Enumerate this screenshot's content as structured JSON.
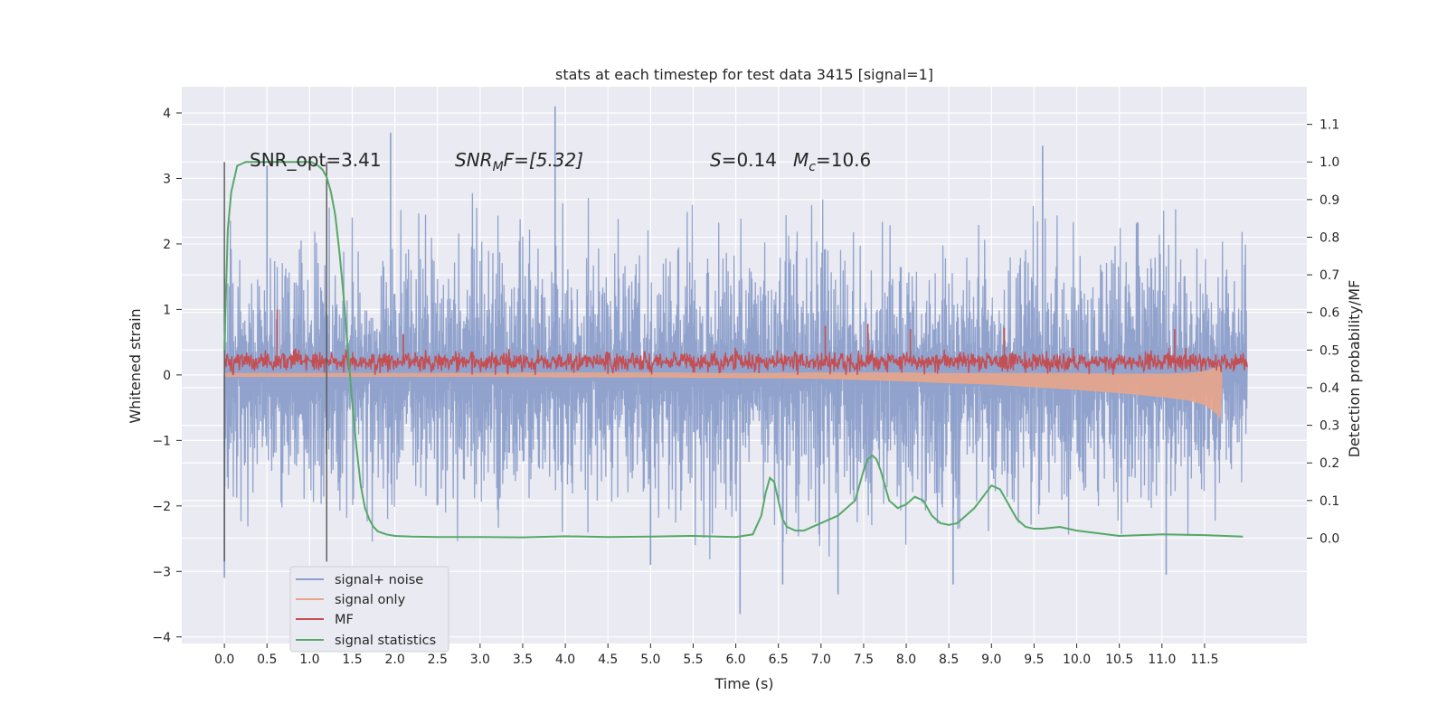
{
  "chart_data": {
    "type": "line",
    "title": "stats at each timestep for test data 3415 [signal=1]",
    "xlabel": "Time (s)",
    "ylabel": "Whitened strain",
    "y2label": "Detection probability/MF",
    "xlim": [
      -0.5,
      12.7
    ],
    "ylim": [
      -4.1,
      4.4
    ],
    "y2lim": [
      -0.28,
      1.2
    ],
    "x_ticks": [
      "0.0",
      "0.5",
      "1.0",
      "1.5",
      "2.0",
      "2.5",
      "3.0",
      "3.5",
      "4.0",
      "4.5",
      "5.0",
      "5.5",
      "6.0",
      "6.5",
      "7.0",
      "7.5",
      "8.0",
      "8.5",
      "9.0",
      "9.5",
      "10.0",
      "10.5",
      "11.0",
      "11.5"
    ],
    "y_ticks": [
      "4",
      "3",
      "2",
      "1",
      "0",
      "−1",
      "−2",
      "−3",
      "−4"
    ],
    "y2_ticks": [
      "1.1",
      "1.0",
      "0.9",
      "0.8",
      "0.7",
      "0.6",
      "0.5",
      "0.4",
      "0.3",
      "0.2",
      "0.1",
      "0.0"
    ],
    "grid": true,
    "legend_position": "bottom-left",
    "annotations": {
      "snr_opt": "SNR_opt=3.41",
      "snr_mf_italic": "SNR",
      "snr_mf_sub": "M",
      "snr_mf_rest": "F=[5.32]",
      "s_label": "S",
      "s_value": "=0.14",
      "mc_label": "M",
      "mc_sub": "c",
      "mc_value": "=10.6"
    },
    "vlines_x": [
      0.0,
      1.2
    ],
    "series": [
      {
        "name": "signal+ noise",
        "color": "#8c9fca",
        "axis": "left",
        "x_range": [
          0.0,
          12.0
        ],
        "envelope_hi": [
          2.3,
          2.0,
          2.2,
          2.6,
          2.1,
          2.4,
          2.3,
          2.9,
          2.5,
          2.2,
          2.7,
          2.3,
          2.1,
          2.5,
          2.4,
          2.2,
          2.8,
          2.6,
          2.3,
          2.4,
          2.5,
          2.1,
          2.3,
          2.6,
          2.2,
          2.5,
          2.7,
          2.4,
          2.1,
          2.3
        ],
        "envelope_lo": [
          -2.4,
          -2.1,
          -2.3,
          -2.2,
          -2.5,
          -2.1,
          -2.6,
          -2.3,
          -2.2,
          -2.4,
          -2.2,
          -2.5,
          -2.7,
          -2.3,
          -2.8,
          -2.6,
          -2.4,
          -2.7,
          -2.3,
          -2.5,
          -2.4,
          -2.2,
          -2.6,
          -2.3,
          -2.5,
          -2.4,
          -2.2,
          -2.6,
          -2.3,
          -2.1
        ],
        "spikes": [
          [
            0.0,
            -3.1
          ],
          [
            0.5,
            3.2
          ],
          [
            1.95,
            3.7
          ],
          [
            3.88,
            4.1
          ],
          [
            5.0,
            -2.9
          ],
          [
            6.05,
            -3.65
          ],
          [
            6.55,
            -3.2
          ],
          [
            7.2,
            -3.35
          ],
          [
            8.55,
            -3.2
          ],
          [
            9.6,
            3.5
          ],
          [
            11.05,
            -3.05
          ]
        ]
      },
      {
        "name": "signal only",
        "color": "#e8a58a",
        "axis": "left",
        "x": [
          0.0,
          1.0,
          2.0,
          3.0,
          4.0,
          5.0,
          6.0,
          7.0,
          7.5,
          8.0,
          8.5,
          9.0,
          9.5,
          10.0,
          10.5,
          11.0,
          11.3,
          11.5,
          11.65,
          11.68,
          11.7
        ],
        "amplitude": [
          0.02,
          0.02,
          0.02,
          0.02,
          0.03,
          0.03,
          0.03,
          0.04,
          0.05,
          0.06,
          0.07,
          0.08,
          0.1,
          0.12,
          0.14,
          0.17,
          0.2,
          0.25,
          0.35,
          0.4,
          0.1
        ],
        "center": [
          0.0,
          0.0,
          0.0,
          0.0,
          0.0,
          0.0,
          -0.01,
          -0.01,
          -0.02,
          -0.03,
          -0.05,
          -0.06,
          -0.08,
          -0.1,
          -0.13,
          -0.16,
          -0.18,
          -0.2,
          -0.24,
          -0.27,
          -0.1
        ]
      },
      {
        "name": "MF",
        "color": "#c44e52",
        "axis": "left",
        "x_range": [
          0.0,
          12.0
        ],
        "baseline": 0.2,
        "band_lo": 0.0,
        "band_hi": 0.5,
        "spikes": [
          [
            0.62,
            1.0
          ],
          [
            2.1,
            0.62
          ],
          [
            7.05,
            0.75
          ],
          [
            7.55,
            0.78
          ],
          [
            8.05,
            0.7
          ],
          [
            9.15,
            0.72
          ],
          [
            11.15,
            0.7
          ]
        ]
      },
      {
        "name": "signal statistics",
        "color": "#55a868",
        "axis": "right",
        "x": [
          0.0,
          0.04,
          0.08,
          0.15,
          0.25,
          0.4,
          0.6,
          0.8,
          0.95,
          1.02,
          1.1,
          1.15,
          1.2,
          1.25,
          1.3,
          1.35,
          1.4,
          1.45,
          1.5,
          1.55,
          1.6,
          1.65,
          1.7,
          1.75,
          1.8,
          1.9,
          2.0,
          2.2,
          2.5,
          3.0,
          3.5,
          4.0,
          4.5,
          5.0,
          5.5,
          6.0,
          6.2,
          6.3,
          6.35,
          6.4,
          6.45,
          6.5,
          6.55,
          6.6,
          6.7,
          6.8,
          6.9,
          7.0,
          7.2,
          7.4,
          7.5,
          7.55,
          7.6,
          7.65,
          7.7,
          7.75,
          7.8,
          7.85,
          7.9,
          8.0,
          8.1,
          8.2,
          8.3,
          8.4,
          8.5,
          8.6,
          8.7,
          8.8,
          8.9,
          9.0,
          9.1,
          9.2,
          9.3,
          9.4,
          9.5,
          9.6,
          9.8,
          10.0,
          10.5,
          11.0,
          11.5,
          11.95
        ],
        "y": [
          0.5,
          0.82,
          0.92,
          0.99,
          1.0,
          1.0,
          1.0,
          1.0,
          1.0,
          1.0,
          0.99,
          0.98,
          0.96,
          0.92,
          0.86,
          0.76,
          0.64,
          0.5,
          0.36,
          0.24,
          0.14,
          0.08,
          0.05,
          0.03,
          0.018,
          0.01,
          0.006,
          0.004,
          0.003,
          0.003,
          0.002,
          0.005,
          0.003,
          0.004,
          0.006,
          0.003,
          0.01,
          0.06,
          0.12,
          0.16,
          0.15,
          0.1,
          0.05,
          0.03,
          0.02,
          0.02,
          0.03,
          0.04,
          0.06,
          0.1,
          0.18,
          0.21,
          0.22,
          0.21,
          0.18,
          0.14,
          0.1,
          0.09,
          0.08,
          0.09,
          0.11,
          0.1,
          0.06,
          0.04,
          0.035,
          0.04,
          0.06,
          0.08,
          0.11,
          0.14,
          0.13,
          0.09,
          0.05,
          0.03,
          0.025,
          0.025,
          0.03,
          0.02,
          0.006,
          0.01,
          0.008,
          0.004
        ]
      }
    ]
  }
}
